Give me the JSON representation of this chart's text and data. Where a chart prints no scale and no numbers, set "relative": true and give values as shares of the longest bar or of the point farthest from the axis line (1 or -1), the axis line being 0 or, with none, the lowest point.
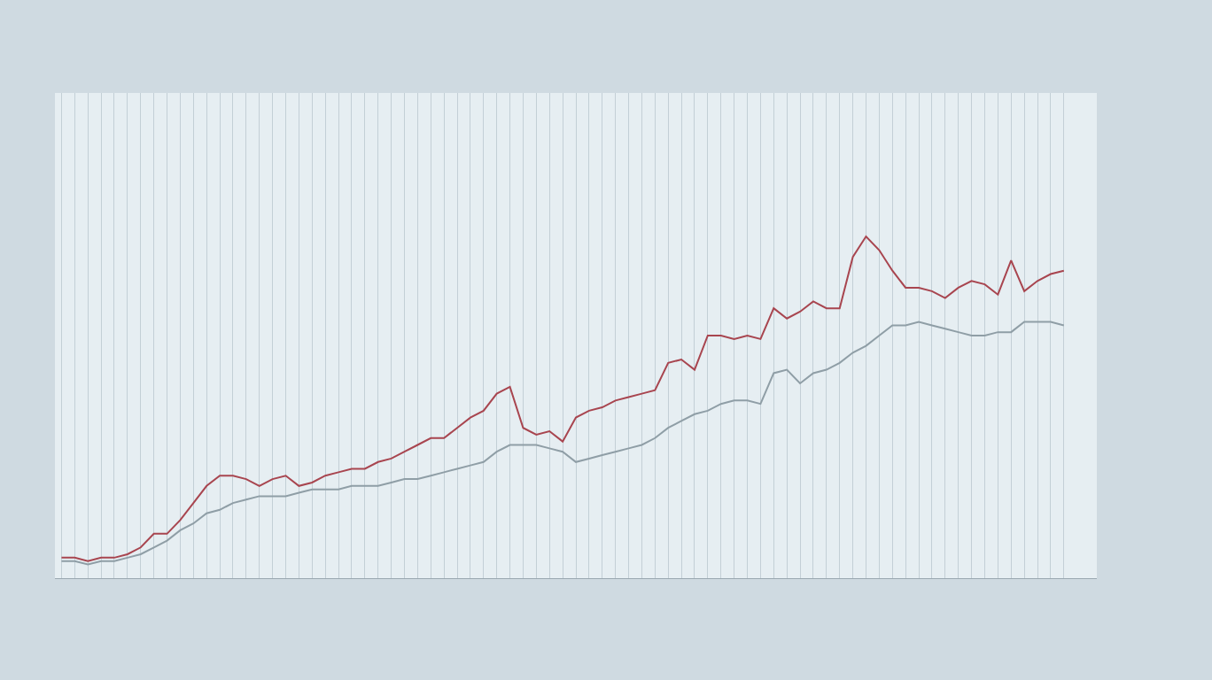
{
  "chart_data": {
    "type": "line",
    "relative": true,
    "grid": "x",
    "categories": [
      null,
      null,
      null,
      null,
      null,
      null,
      null,
      null,
      null,
      null,
      null,
      null,
      null,
      null,
      null,
      null,
      null,
      null,
      null,
      null,
      null,
      null,
      null,
      null,
      null,
      null,
      null,
      null,
      null,
      null,
      null,
      null,
      null,
      null,
      null,
      null,
      null,
      null,
      null,
      null,
      null,
      null,
      null,
      null,
      null,
      null,
      null,
      null,
      null,
      null,
      null,
      null,
      null,
      null,
      null,
      null,
      null,
      null,
      null,
      null,
      null,
      null,
      null,
      null,
      null,
      null,
      null,
      null,
      null,
      null,
      null,
      null,
      null,
      null,
      null,
      null,
      null
    ],
    "series": [
      {
        "color": "#a8454f",
        "values": [
          0.06,
          0.06,
          0.05,
          0.06,
          0.06,
          0.07,
          0.09,
          0.13,
          0.13,
          0.17,
          0.22,
          0.27,
          0.3,
          0.3,
          0.29,
          0.27,
          0.29,
          0.3,
          0.27,
          0.28,
          0.3,
          0.31,
          0.32,
          0.32,
          0.34,
          0.35,
          0.37,
          0.39,
          0.41,
          0.41,
          0.44,
          0.47,
          0.49,
          0.54,
          0.56,
          0.44,
          0.42,
          0.43,
          0.4,
          0.47,
          0.49,
          0.5,
          0.52,
          0.53,
          0.54,
          0.55,
          0.63,
          0.64,
          0.61,
          0.71,
          0.71,
          0.7,
          0.71,
          0.7,
          0.79,
          0.76,
          0.78,
          0.81,
          0.79,
          0.79,
          0.94,
          1.0,
          0.96,
          0.9,
          0.85,
          0.85,
          0.84,
          0.82,
          0.85,
          0.87,
          0.86,
          0.83,
          0.93,
          0.84,
          0.87,
          0.89,
          0.9
        ]
      },
      {
        "color": "#8f9ea6",
        "values": [
          0.05,
          0.05,
          0.04,
          0.05,
          0.05,
          0.06,
          0.07,
          0.09,
          0.11,
          0.14,
          0.16,
          0.19,
          0.2,
          0.22,
          0.23,
          0.24,
          0.24,
          0.24,
          0.25,
          0.26,
          0.26,
          0.26,
          0.27,
          0.27,
          0.27,
          0.28,
          0.29,
          0.29,
          0.3,
          0.31,
          0.32,
          0.33,
          0.34,
          0.37,
          0.39,
          0.39,
          0.39,
          0.38,
          0.37,
          0.34,
          0.35,
          0.36,
          0.37,
          0.38,
          0.39,
          0.41,
          0.44,
          0.46,
          0.48,
          0.49,
          0.51,
          0.52,
          0.52,
          0.51,
          0.6,
          0.61,
          0.57,
          0.6,
          0.61,
          0.63,
          0.66,
          0.68,
          0.71,
          0.74,
          0.74,
          0.75,
          0.74,
          0.73,
          0.72,
          0.71,
          0.71,
          0.72,
          0.72,
          0.75,
          0.75,
          0.75,
          0.74
        ]
      }
    ]
  }
}
